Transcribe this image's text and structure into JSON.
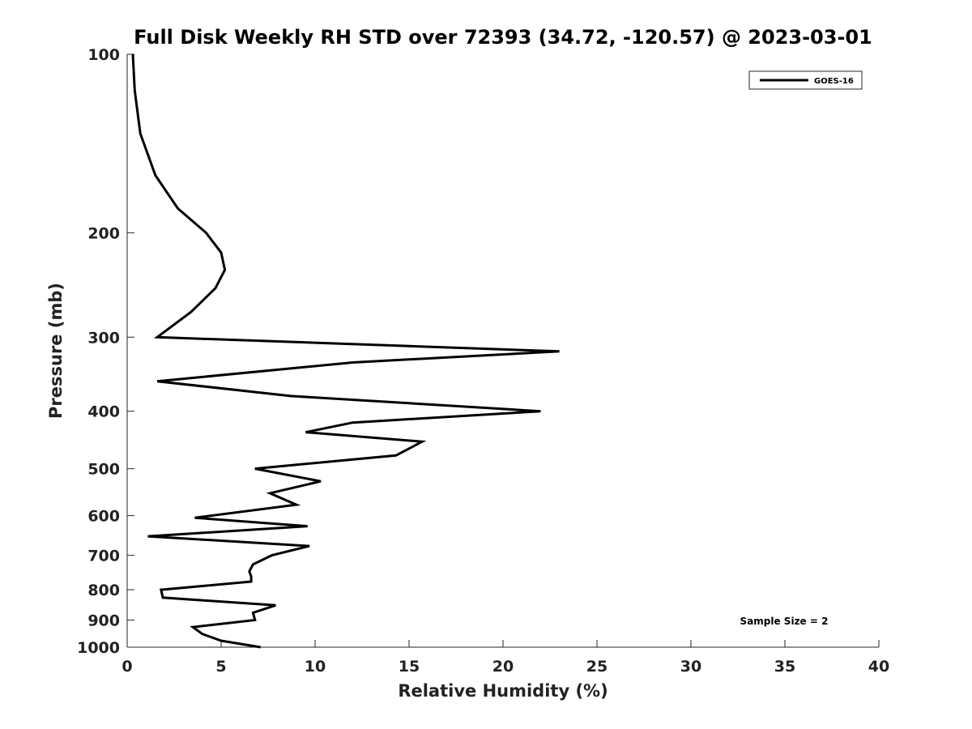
{
  "chart_data": {
    "type": "line",
    "title": "Full Disk Weekly RH STD over 72393 (34.72, -120.57) @ 2023-03-01",
    "xlabel": "Relative Humidity (%)",
    "ylabel": "Pressure (mb)",
    "xlim": [
      0,
      40
    ],
    "ylim": [
      1000,
      100
    ],
    "y_scale": "log",
    "y_inverted": true,
    "x_ticks": [
      0,
      5,
      10,
      15,
      20,
      25,
      30,
      35,
      40
    ],
    "y_ticks": [
      100,
      200,
      300,
      400,
      500,
      600,
      700,
      800,
      900,
      1000
    ],
    "grid": false,
    "legend_position": "top-right",
    "series": [
      {
        "name": "GOES-16",
        "color": "#000000",
        "points": [
          [
            0.3,
            100
          ],
          [
            0.4,
            115
          ],
          [
            0.7,
            136
          ],
          [
            1.5,
            160
          ],
          [
            2.7,
            182
          ],
          [
            4.2,
            200
          ],
          [
            5.0,
            216
          ],
          [
            5.2,
            231
          ],
          [
            4.7,
            248
          ],
          [
            3.4,
            272
          ],
          [
            1.6,
            300
          ],
          [
            23.0,
            317
          ],
          [
            12.0,
            331
          ],
          [
            1.6,
            356
          ],
          [
            8.7,
            377
          ],
          [
            22.0,
            400
          ],
          [
            12.0,
            418
          ],
          [
            9.5,
            434
          ],
          [
            15.7,
            450
          ],
          [
            14.3,
            475
          ],
          [
            6.8,
            500
          ],
          [
            10.3,
            525
          ],
          [
            7.6,
            550
          ],
          [
            9.0,
            575
          ],
          [
            3.6,
            605
          ],
          [
            9.6,
            625
          ],
          [
            1.1,
            650
          ],
          [
            9.7,
            675
          ],
          [
            7.7,
            700
          ],
          [
            6.7,
            725
          ],
          [
            6.5,
            745
          ],
          [
            6.6,
            760
          ],
          [
            6.6,
            775
          ],
          [
            1.8,
            800
          ],
          [
            1.9,
            825
          ],
          [
            7.9,
            850
          ],
          [
            6.7,
            875
          ],
          [
            6.8,
            900
          ],
          [
            3.5,
            925
          ],
          [
            4.0,
            950
          ],
          [
            5.0,
            975
          ],
          [
            7.1,
            1000
          ]
        ]
      }
    ],
    "annotations": [
      "Sample Size = 2"
    ]
  }
}
